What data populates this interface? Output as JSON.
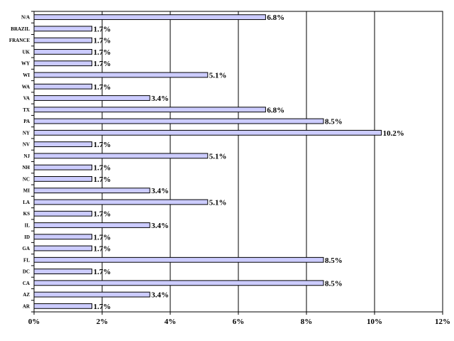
{
  "chart_data": {
    "type": "bar",
    "orientation": "horizontal",
    "categories": [
      "N/A",
      "BRAZIL",
      "FRANCE",
      "UK",
      "WY",
      "WI",
      "WA",
      "VA",
      "TX",
      "PA",
      "NY",
      "NV",
      "NJ",
      "NH",
      "NC",
      "MI",
      "LA",
      "KS",
      "IL",
      "ID",
      "GA",
      "FL",
      "DC",
      "CA",
      "AZ",
      "AR"
    ],
    "values": [
      6.8,
      1.7,
      1.7,
      1.7,
      1.7,
      5.1,
      1.7,
      3.4,
      6.8,
      8.5,
      10.2,
      1.7,
      5.1,
      1.7,
      1.7,
      3.4,
      5.1,
      1.7,
      3.4,
      1.7,
      1.7,
      8.5,
      1.7,
      8.5,
      3.4,
      1.7
    ],
    "value_labels": [
      "6.8%",
      "1.7%",
      "1.7%",
      "1.7%",
      "1.7%",
      "5.1%",
      "1.7%",
      "3.4%",
      "6.8%",
      "8.5%",
      "10.2%",
      "1.7%",
      "5.1%",
      "1.7%",
      "1.7%",
      "3.4%",
      "5.1%",
      "1.7%",
      "3.4%",
      "1.7%",
      "1.7%",
      "8.5%",
      "1.7%",
      "8.5%",
      "3.4%",
      "1.7%"
    ],
    "xlim": [
      0,
      12
    ],
    "x_ticks": [
      "0%",
      "2%",
      "4%",
      "6%",
      "8%",
      "10%",
      "12%"
    ],
    "grid": "vertical",
    "bar_color": "#ccccff",
    "bar_edge_color": "#000000",
    "title": "",
    "xlabel": "",
    "ylabel": ""
  }
}
